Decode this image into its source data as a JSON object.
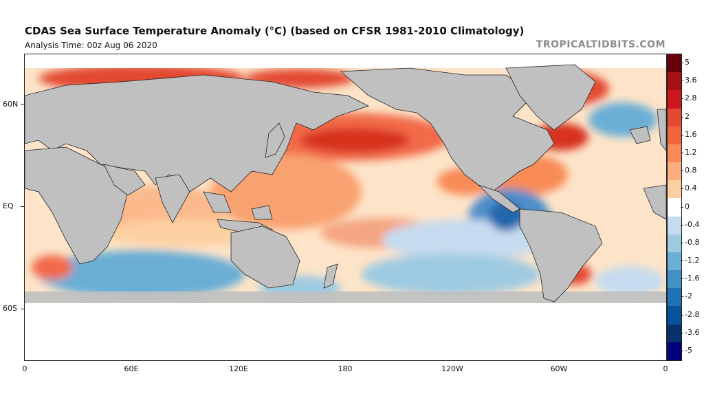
{
  "title": "CDAS Sea Surface Temperature Anomaly (°C) (based on CFSR 1981-2010 Climatology)",
  "subtitle": "Analysis Time: 00z Aug 06 2020",
  "credit": "TROPICALTIDBITS.COM",
  "lat_labels": [
    "60N",
    "EQ",
    "60S"
  ],
  "lon_labels": [
    "0",
    "60E",
    "120E",
    "180",
    "120W",
    "60W",
    "0"
  ],
  "colorbar": {
    "labels": [
      "5",
      "3.6",
      "2.8",
      "2",
      "1.6",
      "1.2",
      "0.8",
      "0.4",
      "0",
      "-0.4",
      "-0.8",
      "-1.2",
      "-1.6",
      "-2",
      "-2.8",
      "-3.6",
      "-5"
    ],
    "colors": [
      "#67000d",
      "#a50f15",
      "#cb181d",
      "#e34a33",
      "#f0663c",
      "#f88b57",
      "#fcae80",
      "#fdd0a2",
      "#ffffff",
      "#c6dbef",
      "#9ecae1",
      "#6baed6",
      "#4292c6",
      "#2171b5",
      "#08519c",
      "#08306b",
      "#00007a"
    ]
  },
  "colors": {
    "land": "#c0c0c0",
    "ice": "#ffffff",
    "warm": "#f4a582",
    "cool": "#92c5de"
  }
}
